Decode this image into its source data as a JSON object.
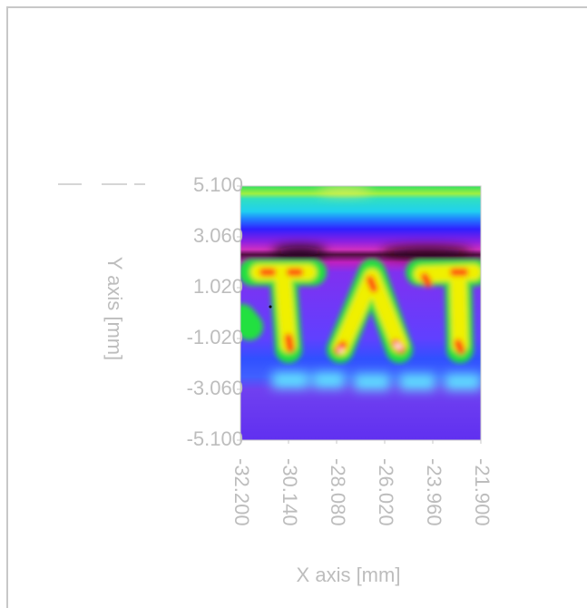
{
  "chart_data": {
    "type": "heatmap",
    "xlabel": "X axis [mm]",
    "ylabel": "Y axis [mm]",
    "xlim": [
      -32.2,
      -21.9
    ],
    "ylim": [
      -5.1,
      5.1
    ],
    "xticks": [
      {
        "value": -32.2,
        "label": "-32.200"
      },
      {
        "value": -30.14,
        "label": "-30.140"
      },
      {
        "value": -28.08,
        "label": "-28.080"
      },
      {
        "value": -26.02,
        "label": "-26.020"
      },
      {
        "value": -23.96,
        "label": "-23.960"
      },
      {
        "value": -21.9,
        "label": "-21.900"
      }
    ],
    "yticks": [
      {
        "value": 5.1,
        "label": "5.100"
      },
      {
        "value": 3.06,
        "label": "3.060"
      },
      {
        "value": 1.02,
        "label": "1.020"
      },
      {
        "value": -1.02,
        "label": "-1.020"
      },
      {
        "value": -3.06,
        "label": "-3.060"
      },
      {
        "value": -5.1,
        "label": "-5.100"
      }
    ]
  }
}
